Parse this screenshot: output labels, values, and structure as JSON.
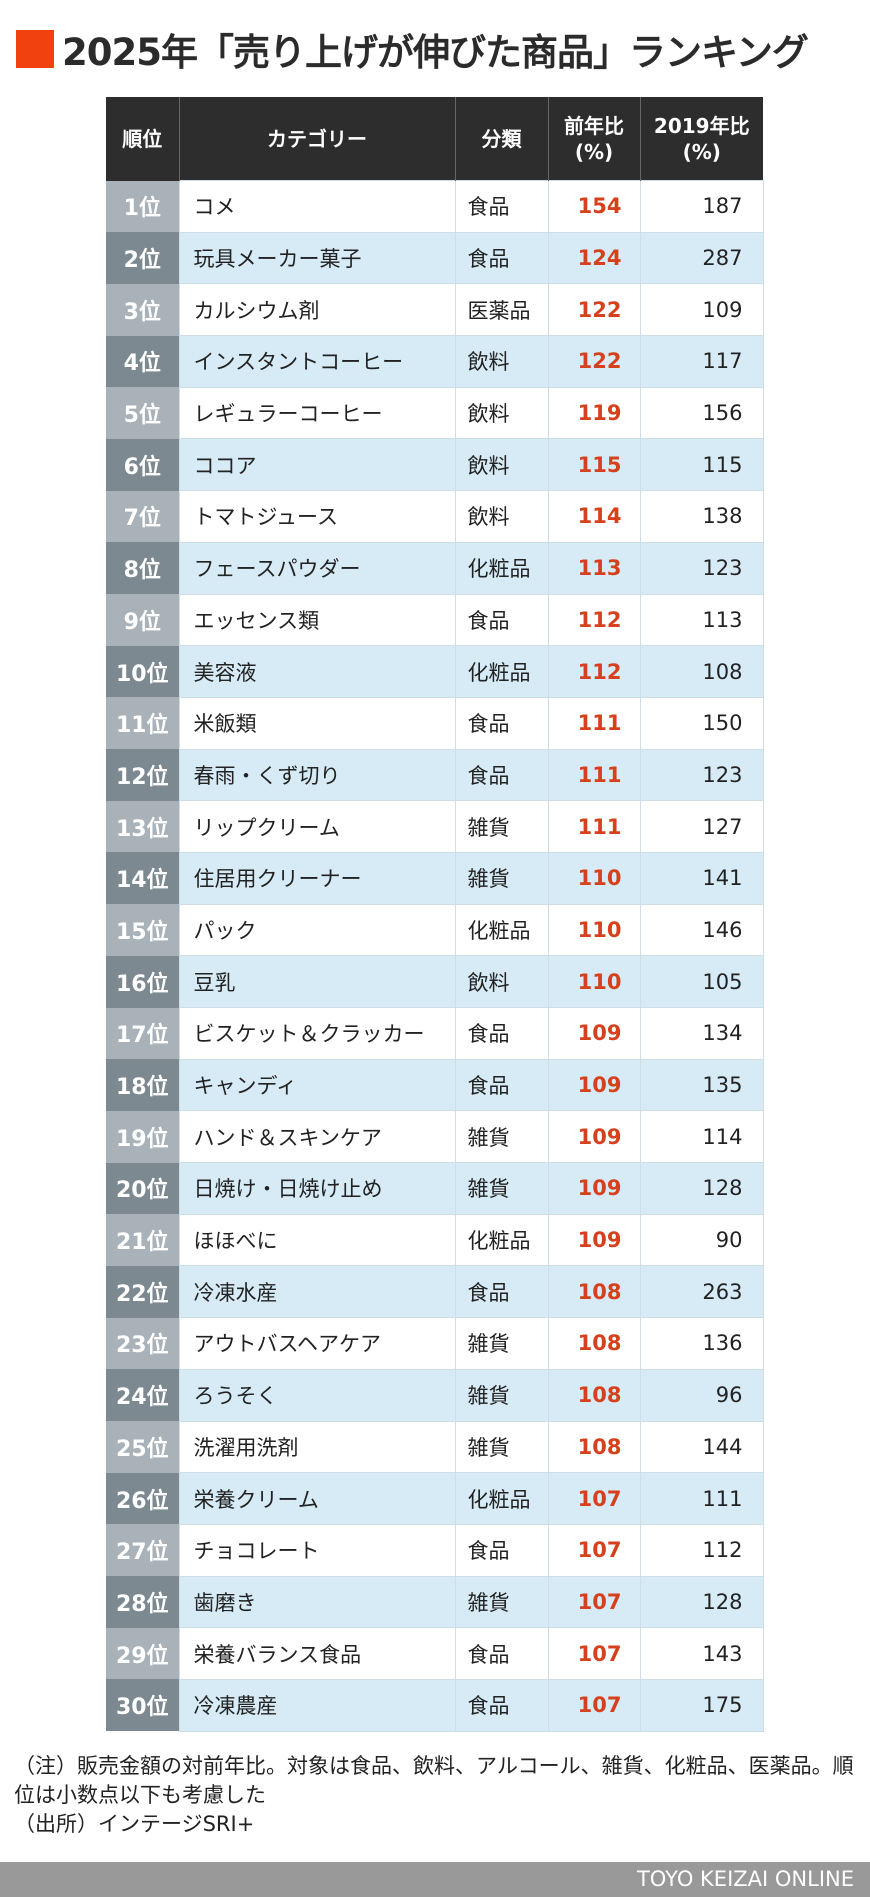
{
  "title": "2025年「売り上げが伸びた商品」ランキング",
  "headers": {
    "rank": "順位",
    "category": "カテゴリー",
    "class": "分類",
    "yoy": "前年比\n(%)",
    "vs2019": "2019年比\n(%)"
  },
  "rows": [
    {
      "rank": "1位",
      "category": "コメ",
      "class": "食品",
      "yoy": "154",
      "vs2019": "187"
    },
    {
      "rank": "2位",
      "category": "玩具メーカー菓子",
      "class": "食品",
      "yoy": "124",
      "vs2019": "287"
    },
    {
      "rank": "3位",
      "category": "カルシウム剤",
      "class": "医薬品",
      "yoy": "122",
      "vs2019": "109"
    },
    {
      "rank": "4位",
      "category": "インスタントコーヒー",
      "class": "飲料",
      "yoy": "122",
      "vs2019": "117"
    },
    {
      "rank": "5位",
      "category": "レギュラーコーヒー",
      "class": "飲料",
      "yoy": "119",
      "vs2019": "156"
    },
    {
      "rank": "6位",
      "category": "ココア",
      "class": "飲料",
      "yoy": "115",
      "vs2019": "115"
    },
    {
      "rank": "7位",
      "category": "トマトジュース",
      "class": "飲料",
      "yoy": "114",
      "vs2019": "138"
    },
    {
      "rank": "8位",
      "category": "フェースパウダー",
      "class": "化粧品",
      "yoy": "113",
      "vs2019": "123"
    },
    {
      "rank": "9位",
      "category": "エッセンス類",
      "class": "食品",
      "yoy": "112",
      "vs2019": "113"
    },
    {
      "rank": "10位",
      "category": "美容液",
      "class": "化粧品",
      "yoy": "112",
      "vs2019": "108"
    },
    {
      "rank": "11位",
      "category": "米飯類",
      "class": "食品",
      "yoy": "111",
      "vs2019": "150"
    },
    {
      "rank": "12位",
      "category": "春雨・くず切り",
      "class": "食品",
      "yoy": "111",
      "vs2019": "123"
    },
    {
      "rank": "13位",
      "category": "リップクリーム",
      "class": "雑貨",
      "yoy": "111",
      "vs2019": "127"
    },
    {
      "rank": "14位",
      "category": "住居用クリーナー",
      "class": "雑貨",
      "yoy": "110",
      "vs2019": "141"
    },
    {
      "rank": "15位",
      "category": "パック",
      "class": "化粧品",
      "yoy": "110",
      "vs2019": "146"
    },
    {
      "rank": "16位",
      "category": "豆乳",
      "class": "飲料",
      "yoy": "110",
      "vs2019": "105"
    },
    {
      "rank": "17位",
      "category": "ビスケット＆クラッカー",
      "class": "食品",
      "yoy": "109",
      "vs2019": "134"
    },
    {
      "rank": "18位",
      "category": "キャンディ",
      "class": "食品",
      "yoy": "109",
      "vs2019": "135"
    },
    {
      "rank": "19位",
      "category": "ハンド＆スキンケア",
      "class": "雑貨",
      "yoy": "109",
      "vs2019": "114"
    },
    {
      "rank": "20位",
      "category": "日焼け・日焼け止め",
      "class": "雑貨",
      "yoy": "109",
      "vs2019": "128"
    },
    {
      "rank": "21位",
      "category": "ほほべに",
      "class": "化粧品",
      "yoy": "109",
      "vs2019": "90"
    },
    {
      "rank": "22位",
      "category": "冷凍水産",
      "class": "食品",
      "yoy": "108",
      "vs2019": "263"
    },
    {
      "rank": "23位",
      "category": "アウトバスヘアケア",
      "class": "雑貨",
      "yoy": "108",
      "vs2019": "136"
    },
    {
      "rank": "24位",
      "category": "ろうそく",
      "class": "雑貨",
      "yoy": "108",
      "vs2019": "96"
    },
    {
      "rank": "25位",
      "category": "洗濯用洗剤",
      "class": "雑貨",
      "yoy": "108",
      "vs2019": "144"
    },
    {
      "rank": "26位",
      "category": "栄養クリーム",
      "class": "化粧品",
      "yoy": "107",
      "vs2019": "111"
    },
    {
      "rank": "27位",
      "category": "チョコレート",
      "class": "食品",
      "yoy": "107",
      "vs2019": "112"
    },
    {
      "rank": "28位",
      "category": "歯磨き",
      "class": "雑貨",
      "yoy": "107",
      "vs2019": "128"
    },
    {
      "rank": "29位",
      "category": "栄養バランス食品",
      "class": "食品",
      "yoy": "107",
      "vs2019": "143"
    },
    {
      "rank": "30位",
      "category": "冷凍農産",
      "class": "食品",
      "yoy": "107",
      "vs2019": "175"
    }
  ],
  "notes": {
    "note": "（注）販売金額の対前年比。対象は食品、飲料、アルコール、雑貨、化粧品、医薬品。順位は小数点以下も考慮した",
    "source": "（出所）インテージSRI+"
  },
  "footer": "TOYO KEIZAI ONLINE",
  "colors": {
    "accent": "#f0410f",
    "yoy_text": "#d6401c",
    "header_bg": "#2d2d2d",
    "row_alt": "#d6ebf6"
  }
}
